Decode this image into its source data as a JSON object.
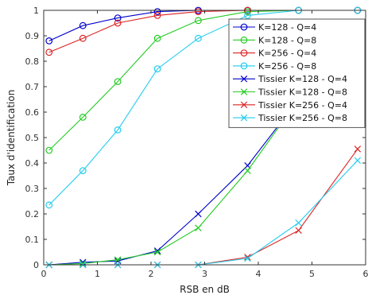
{
  "chart_data": {
    "type": "line",
    "title": "",
    "xlabel": "RSB en dB",
    "ylabel": "Taux d'identification",
    "xlim": [
      0,
      6
    ],
    "ylim": [
      0,
      1
    ],
    "xticks": [
      "0",
      "1",
      "2",
      "3",
      "4",
      "5",
      "6"
    ],
    "yticks": [
      "0",
      "0.1",
      "0.2",
      "0.3",
      "0.4",
      "0.5",
      "0.6",
      "0.7",
      "0.8",
      "0.9",
      "1"
    ],
    "grid": false,
    "legend_position": "top-right",
    "series": [
      {
        "name": "K=128 - Q=4",
        "color": "#0000cc",
        "marker": "circle",
        "x": [
          0.1,
          0.73,
          1.38,
          2.12,
          2.88,
          3.8,
          4.75,
          5.85
        ],
        "y": [
          0.88,
          0.94,
          0.97,
          0.995,
          1.0,
          1.0,
          1.0,
          1.0
        ]
      },
      {
        "name": "K=128 - Q=8",
        "color": "#22cc22",
        "marker": "circle",
        "x": [
          0.1,
          0.73,
          1.38,
          2.12,
          2.88,
          3.8,
          4.75,
          5.85
        ],
        "y": [
          0.45,
          0.58,
          0.72,
          0.89,
          0.96,
          0.995,
          1.0,
          1.0
        ]
      },
      {
        "name": "K=256 - Q=4",
        "color": "#dd2222",
        "marker": "circle",
        "x": [
          0.1,
          0.73,
          1.38,
          2.12,
          2.88,
          3.8,
          4.75,
          5.85
        ],
        "y": [
          0.835,
          0.89,
          0.95,
          0.98,
          0.995,
          1.0,
          1.0,
          1.0
        ]
      },
      {
        "name": "K=256 - Q=8",
        "color": "#22ccee",
        "marker": "circle",
        "x": [
          0.1,
          0.73,
          1.38,
          2.12,
          2.88,
          3.8,
          4.75,
          5.85
        ],
        "y": [
          0.235,
          0.37,
          0.53,
          0.77,
          0.89,
          0.98,
          1.0,
          1.0
        ]
      },
      {
        "name": "Tissier K=128 - Q=4",
        "color": "#0000cc",
        "marker": "x",
        "x": [
          0.1,
          0.73,
          1.38,
          2.12,
          2.88,
          3.8,
          4.75,
          5.85
        ],
        "y": [
          0.0,
          0.01,
          0.015,
          0.055,
          0.2,
          0.39,
          0.65,
          0.82
        ]
      },
      {
        "name": "Tissier K=128 - Q=8",
        "color": "#22cc22",
        "marker": "x",
        "x": [
          0.1,
          0.73,
          1.38,
          2.12,
          2.88,
          3.8,
          4.75,
          5.85
        ],
        "y": [
          0.0,
          0.005,
          0.02,
          0.05,
          0.145,
          0.37,
          0.65,
          0.84
        ]
      },
      {
        "name": "Tissier K=256 - Q=4",
        "color": "#dd2222",
        "marker": "x",
        "x": [
          0.1,
          0.73,
          1.38,
          2.12,
          2.88,
          3.8,
          4.75,
          5.85
        ],
        "y": [
          0.0,
          0.0,
          0.0,
          0.0,
          0.0,
          0.03,
          0.135,
          0.455
        ]
      },
      {
        "name": "Tissier K=256 - Q=8",
        "color": "#22ccee",
        "marker": "x",
        "x": [
          0.1,
          0.73,
          1.38,
          2.12,
          2.88,
          3.8,
          4.75,
          5.85
        ],
        "y": [
          0.0,
          0.0,
          0.0,
          0.0,
          0.0,
          0.025,
          0.165,
          0.41
        ]
      }
    ]
  }
}
